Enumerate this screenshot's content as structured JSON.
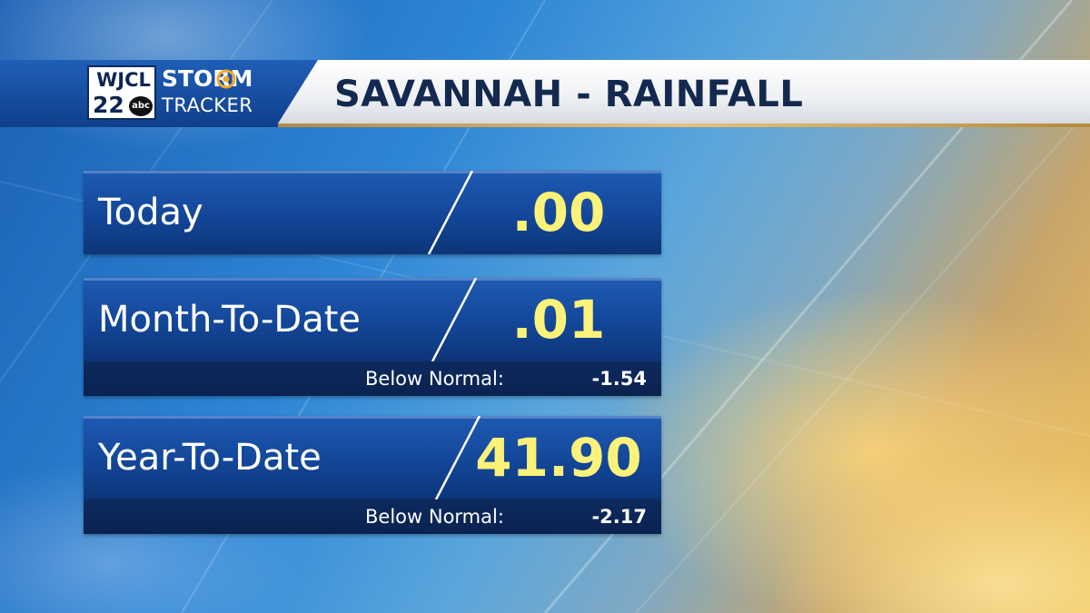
{
  "header": {
    "title": "SAVANNAH - RAINFALL"
  },
  "logo": {
    "call_letters": "WJCL",
    "channel": "22",
    "network": "abc",
    "brand_line1": "STORM",
    "brand_line2": "TRACKER"
  },
  "rows": [
    {
      "label": "Today",
      "value": ".00"
    },
    {
      "label": "Month-To-Date",
      "value": ".01",
      "sub_label": "Below Normal:",
      "sub_value": "-1.54"
    },
    {
      "label": "Year-To-Date",
      "value": "41.90",
      "sub_label": "Below Normal:",
      "sub_value": "-2.17"
    }
  ],
  "colors": {
    "value_yellow": "#fbf27a",
    "panel_blue": "#134698",
    "header_navy": "#13294f",
    "sub_bar": "#0a2250"
  }
}
